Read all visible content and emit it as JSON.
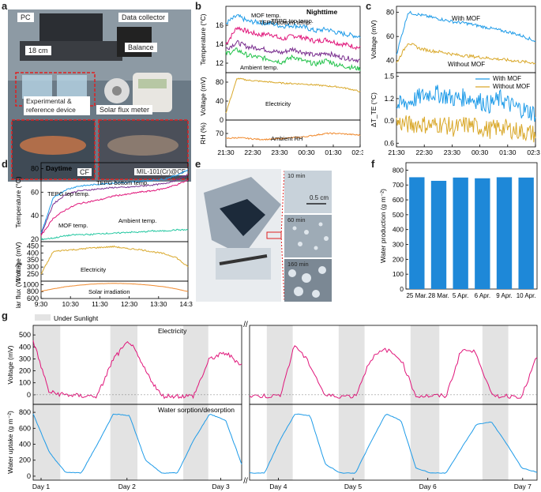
{
  "panel_letters": [
    "a",
    "b",
    "c",
    "d",
    "e",
    "f",
    "g"
  ],
  "photo_a": {
    "labels": [
      "PC",
      "Data collector",
      "Balance",
      "18 cm",
      "Experimental & reference device",
      "Solar flux meter",
      "CF",
      "MIL-101(Cr)@CF"
    ]
  },
  "photo_e": {
    "labels": [
      "10 min",
      "0.5 cm",
      "60 min",
      "160 min"
    ]
  },
  "chart_data": [
    {
      "panel": "b",
      "type": "line",
      "title": "Nighttime",
      "x_ticks": [
        "21:30",
        "22:30",
        "23:30",
        "00:30",
        "01:30",
        "02:30"
      ],
      "subplots": [
        {
          "ylabel": "Temperature (°C)",
          "ylim": [
            11,
            18
          ],
          "yticks": [
            12,
            14,
            16
          ],
          "series": [
            {
              "name": "MOF temp.",
              "color": "#e0157a",
              "values": [
                14.0,
                15.8,
                15.3,
                15.0,
                15.1,
                14.5,
                14.9,
                14.7,
                14.3,
                14.5,
                14.1,
                13.9,
                13.6
              ]
            },
            {
              "name": "TEPG bottom temp.",
              "color": "#1e9be8",
              "values": [
                16.2,
                17.0,
                16.4,
                16.3,
                16.2,
                15.9,
                16.0,
                15.8,
                15.4,
                15.6,
                15.2,
                15.0,
                14.8
              ]
            },
            {
              "name": "TEPG top temp.",
              "color": "#7a2f8f",
              "values": [
                13.5,
                14.2,
                13.7,
                13.6,
                13.3,
                13.1,
                13.5,
                13.1,
                12.8,
                13.1,
                12.7,
                12.5,
                12.3
              ]
            },
            {
              "name": "Ambient temp.",
              "color": "#22c24a",
              "values": [
                13.0,
                13.4,
                12.8,
                12.6,
                12.4,
                12.1,
                12.7,
                12.2,
                11.9,
                12.3,
                11.8,
                11.6,
                11.4
              ]
            }
          ]
        },
        {
          "ylabel": "Voltage (mV)",
          "ylim": [
            0,
            100
          ],
          "yticks": [
            0,
            40,
            80
          ],
          "series": [
            {
              "name": "Electricity",
              "color": "#d9a82a",
              "values": [
                15,
                88,
                84,
                82,
                80,
                78,
                77,
                76,
                74,
                72,
                70,
                66,
                60
              ]
            }
          ]
        },
        {
          "ylabel": "RH (%)",
          "ylim": [
            62,
            78
          ],
          "yticks": [
            70
          ],
          "series": [
            {
              "name": "Ambient RH",
              "color": "#f08a2e",
              "values": [
                67,
                67.5,
                67,
                66.5,
                66.5,
                67,
                67.5,
                68,
                69,
                70,
                70,
                69.5,
                69
              ]
            }
          ]
        }
      ]
    },
    {
      "panel": "c",
      "type": "line",
      "x_ticks": [
        "21:30",
        "22:30",
        "23:30",
        "00:30",
        "01:30",
        "02:30"
      ],
      "subplots": [
        {
          "ylabel": "Voltage (mV)",
          "ylim": [
            30,
            85
          ],
          "yticks": [
            40,
            60,
            80
          ],
          "series": [
            {
              "name": "With MOF",
              "color": "#1e9be8",
              "values": [
                45,
                80,
                78,
                76,
                74,
                72,
                71,
                69,
                67,
                65,
                63,
                60,
                56
              ]
            },
            {
              "name": "Without MOF",
              "color": "#d9a82a",
              "values": [
                38,
                55,
                50,
                48,
                47,
                45,
                44,
                43,
                42,
                41,
                40,
                39,
                38
              ]
            }
          ]
        },
        {
          "ylabel": "ΔT_TE (°C)",
          "ylim": [
            0.55,
            1.55
          ],
          "yticks": [
            0.6,
            0.9,
            1.2,
            1.5
          ],
          "series": [
            {
              "name": "With MOF",
              "color": "#1e9be8",
              "values": [
                1.1,
                1.15,
                1.22,
                1.28,
                1.25,
                1.2,
                1.22,
                1.18,
                1.12,
                1.2,
                1.1,
                1.05,
                1.0
              ]
            },
            {
              "name": "Without MOF",
              "color": "#d9a82a",
              "values": [
                0.88,
                0.85,
                0.86,
                0.84,
                0.86,
                0.8,
                0.85,
                0.82,
                0.78,
                0.82,
                0.78,
                0.75,
                0.72
              ]
            }
          ]
        }
      ]
    },
    {
      "panel": "d",
      "type": "line",
      "title": "Daytime",
      "x_ticks": [
        "9:30",
        "10:30",
        "11:30",
        "12:30",
        "13:30",
        "14:30"
      ],
      "subplots": [
        {
          "ylabel": "Temperature (°C)",
          "ylim": [
            18,
            85
          ],
          "yticks": [
            20,
            40,
            60,
            80
          ],
          "series": [
            {
              "name": "TEPG top temp.",
              "color": "#1e9be8",
              "values": [
                25,
                55,
                62,
                65,
                66,
                67,
                68,
                68,
                69,
                70,
                71,
                74,
                79
              ]
            },
            {
              "name": "TEPG bottom temp.",
              "color": "#7a2f8f",
              "values": [
                24,
                50,
                58,
                61,
                62,
                63,
                64,
                64,
                65,
                66,
                67,
                70,
                75
              ]
            },
            {
              "name": "MOF temp.",
              "color": "#e0157a",
              "values": [
                23,
                38,
                45,
                50,
                52,
                54,
                57,
                58,
                60,
                61,
                63,
                66,
                70
              ]
            },
            {
              "name": "Ambient temp.",
              "color": "#22c7a0",
              "values": [
                20,
                21,
                23,
                24,
                24,
                25,
                25,
                26,
                26,
                27,
                27,
                28,
                28
              ]
            }
          ]
        },
        {
          "ylabel": "Voltage (mV)",
          "ylim": [
            200,
            480
          ],
          "yticks": [
            250,
            300,
            350,
            400,
            450
          ],
          "series": [
            {
              "name": "Electricity",
              "color": "#d9a82a",
              "values": [
                250,
                410,
                420,
                425,
                435,
                440,
                445,
                430,
                425,
                410,
                395,
                370,
                300
              ]
            }
          ]
        },
        {
          "ylabel": "Solar flux (W m⁻²)",
          "ylim": [
            600,
            1100
          ],
          "yticks": [
            600,
            800,
            1000
          ],
          "series": [
            {
              "name": "Solar irradiation",
              "color": "#f08a2e",
              "values": [
                810,
                880,
                940,
                980,
                1010,
                1030,
                1035,
                1030,
                1010,
                980,
                940,
                880,
                800
              ]
            }
          ]
        }
      ]
    },
    {
      "panel": "f",
      "type": "bar",
      "categories": [
        "25 Mar.",
        "28 Mar.",
        "5 Apr.",
        "6 Apr.",
        "9 Apr.",
        "10 Apr."
      ],
      "values": [
        752,
        728,
        750,
        745,
        752,
        750
      ],
      "ylabel": "Water production (g m⁻²)",
      "ylim": [
        0,
        850
      ],
      "yticks": [
        0,
        100,
        200,
        300,
        400,
        500,
        600,
        700,
        800
      ],
      "color": "#1e88d8"
    },
    {
      "panel": "g",
      "type": "line",
      "legend": "Under Sunlight",
      "days": [
        "Day 1",
        "Day 2",
        "Day 3",
        "Day 4",
        "Day 5",
        "Day 6",
        "Day 7"
      ],
      "subplots": [
        {
          "ylabel": "Voltage (mV)",
          "ylim": [
            -80,
            580
          ],
          "yticks": [
            0,
            100,
            200,
            300,
            400,
            500
          ],
          "series": [
            {
              "name": "Electricity",
              "color": "#e0157a",
              "values": [
                450,
                20,
                0,
                -10,
                -10,
                300,
                450,
                200,
                -10,
                -10,
                -10,
                300,
                350,
                250,
                -10,
                -10,
                -10,
                420,
                250,
                -10,
                -10,
                -10,
                300,
                380,
                300,
                -10,
                -10,
                -10,
                380,
                350,
                -10,
                -10,
                -10,
                320
              ]
            }
          ]
        },
        {
          "ylabel": "Water uptake (g m⁻²)",
          "ylim": [
            -50,
            900
          ],
          "yticks": [
            0,
            200,
            400,
            600,
            800
          ],
          "series": [
            {
              "name": "Water sorption/desorption",
              "color": "#1e9be8",
              "values": [
                780,
                300,
                50,
                40,
                400,
                780,
                760,
                200,
                40,
                40,
                450,
                780,
                700,
                150,
                40,
                40,
                450,
                780,
                760,
                150,
                40,
                40,
                420,
                780,
                700,
                100,
                40,
                40,
                350,
                650,
                680,
                400,
                100,
                50
              ]
            }
          ]
        }
      ]
    }
  ],
  "legend_labels": {
    "with_mof": "With MOF",
    "without_mof": "Without MOF",
    "under_sunlight": "Under Sunlight"
  }
}
